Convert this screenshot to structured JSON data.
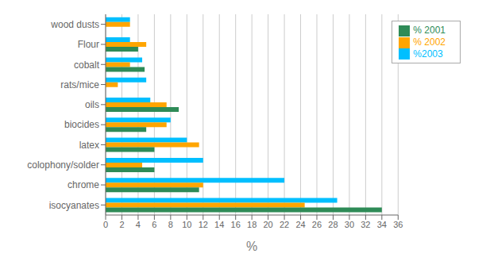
{
  "chart_data": {
    "type": "bar",
    "orientation": "horizontal",
    "xlabel": "%",
    "categories": [
      "wood dusts",
      "Flour",
      "cobalt",
      "rats/mice",
      "oils",
      "biocides",
      "latex",
      "colophony/solder",
      "chrome",
      "isocyanates"
    ],
    "series": [
      {
        "name": "%2003",
        "color": "#00BFFF",
        "values": [
          3.0,
          3.0,
          4.5,
          5.0,
          5.5,
          8.0,
          10.0,
          12.0,
          22.0,
          28.5
        ]
      },
      {
        "name": "% 2002",
        "color": "#FFA500",
        "values": [
          3.0,
          5.0,
          3.0,
          1.5,
          7.5,
          7.5,
          11.5,
          4.5,
          12.0,
          24.5
        ]
      },
      {
        "name": "% 2001",
        "color": "#2E8B57",
        "values": [
          0,
          4.0,
          4.8,
          0,
          9.0,
          5.0,
          6.0,
          6.0,
          11.5,
          34.0
        ]
      }
    ],
    "xlim": [
      0,
      36
    ],
    "xticks": [
      0,
      2,
      4,
      6,
      8,
      10,
      12,
      14,
      16,
      18,
      20,
      22,
      24,
      26,
      28,
      30,
      32,
      34,
      36
    ],
    "grid": true,
    "legend": "upper right"
  }
}
